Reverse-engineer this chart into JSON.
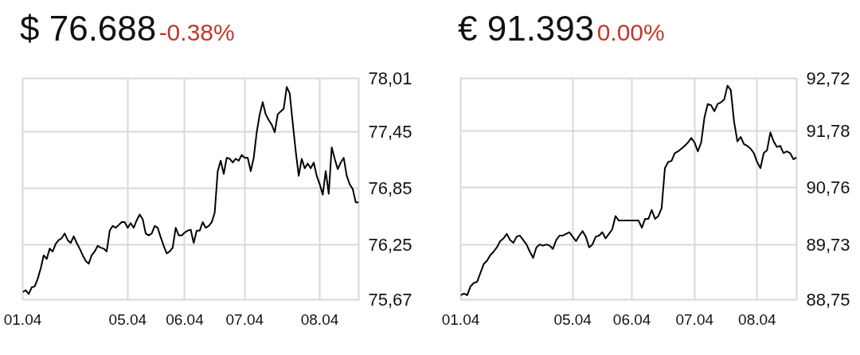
{
  "chart_data": [
    {
      "type": "line",
      "title": "$ 76.688",
      "subtitle": "-0.38%",
      "grid": true,
      "line_style": "solid",
      "categories": [
        "01.04",
        null,
        null,
        null,
        null,
        null,
        null,
        null,
        null,
        null,
        null,
        null,
        null,
        null,
        null,
        null,
        null,
        null,
        null,
        null,
        null,
        null,
        null,
        null,
        null,
        null,
        null,
        null,
        null,
        null,
        null,
        null,
        null,
        null,
        null,
        "05.04",
        null,
        null,
        null,
        null,
        null,
        null,
        null,
        null,
        null,
        null,
        null,
        null,
        null,
        null,
        null,
        null,
        null,
        null,
        "06.04",
        null,
        null,
        null,
        null,
        null,
        null,
        null,
        null,
        null,
        null,
        null,
        null,
        null,
        null,
        null,
        null,
        null,
        null,
        null,
        "07.04",
        null,
        null,
        null,
        null,
        null,
        null,
        null,
        null,
        null,
        null,
        null,
        null,
        null,
        null,
        null,
        null,
        null,
        null,
        null,
        null,
        null,
        null,
        null,
        null,
        "08.04",
        null,
        null,
        null,
        null,
        null,
        null,
        null,
        null,
        null,
        null,
        null,
        null,
        null
      ],
      "ylim": [
        75.67,
        78.01
      ],
      "yticks": [
        {
          "value": 75.67,
          "label": "75,67"
        },
        {
          "value": 76.25,
          "label": "76,25"
        },
        {
          "value": 76.85,
          "label": "76,85"
        },
        {
          "value": 77.45,
          "label": "77,45"
        },
        {
          "value": 78.01,
          "label": "78,01"
        }
      ],
      "series": [
        {
          "color": "#000000",
          "values": [
            75.75,
            75.77,
            75.73,
            75.8,
            75.81,
            75.89,
            76.0,
            76.14,
            76.1,
            76.21,
            76.18,
            76.26,
            76.3,
            76.32,
            76.37,
            76.3,
            76.27,
            76.34,
            76.27,
            76.21,
            76.14,
            76.08,
            76.05,
            76.14,
            76.18,
            76.24,
            76.22,
            76.21,
            76.18,
            76.4,
            76.45,
            76.43,
            76.46,
            76.49,
            76.49,
            76.43,
            76.48,
            76.43,
            76.51,
            76.57,
            76.52,
            76.37,
            76.35,
            76.37,
            76.45,
            76.43,
            76.33,
            76.24,
            76.16,
            76.18,
            76.22,
            76.43,
            76.35,
            76.35,
            76.38,
            76.4,
            76.41,
            76.27,
            76.4,
            76.4,
            76.49,
            76.43,
            76.45,
            76.49,
            76.59,
            77.03,
            77.14,
            77.0,
            77.17,
            77.16,
            77.12,
            77.16,
            77.14,
            77.2,
            77.17,
            77.17,
            77.03,
            77.17,
            77.44,
            77.63,
            77.76,
            77.63,
            77.57,
            77.52,
            77.44,
            77.63,
            77.66,
            77.69,
            77.92,
            77.85,
            77.54,
            77.24,
            76.98,
            77.16,
            77.06,
            77.11,
            77.06,
            77.12,
            76.98,
            76.89,
            76.78,
            77.03,
            76.79,
            77.28,
            77.16,
            77.05,
            77.12,
            77.17,
            76.98,
            76.89,
            76.84,
            76.7,
            76.7
          ]
        }
      ]
    },
    {
      "type": "line",
      "title": "€ 91.393",
      "subtitle": "0.00%",
      "grid": true,
      "line_style": "solid",
      "categories": [
        "01.04",
        null,
        null,
        null,
        null,
        null,
        null,
        null,
        null,
        null,
        null,
        null,
        null,
        null,
        null,
        null,
        null,
        null,
        null,
        null,
        null,
        null,
        null,
        null,
        null,
        null,
        null,
        null,
        null,
        null,
        null,
        null,
        null,
        null,
        "05.04",
        null,
        null,
        null,
        null,
        null,
        null,
        null,
        null,
        null,
        null,
        null,
        null,
        null,
        null,
        null,
        null,
        null,
        "06.04",
        null,
        null,
        null,
        null,
        null,
        null,
        null,
        null,
        null,
        null,
        null,
        null,
        null,
        null,
        null,
        null,
        null,
        null,
        "07.04",
        null,
        null,
        null,
        null,
        null,
        null,
        null,
        null,
        null,
        null,
        null,
        null,
        null,
        null,
        null,
        null,
        null,
        null,
        "08.04",
        null,
        null,
        null,
        null,
        null,
        null,
        null,
        null,
        null,
        null,
        null,
        null
      ],
      "ylim": [
        88.75,
        92.72
      ],
      "yticks": [
        {
          "value": 88.75,
          "label": "88,75"
        },
        {
          "value": 89.73,
          "label": "89,73"
        },
        {
          "value": 90.76,
          "label": "90,76"
        },
        {
          "value": 91.78,
          "label": "91,78"
        },
        {
          "value": 92.72,
          "label": "92,72"
        }
      ],
      "series": [
        {
          "color": "#000000",
          "values": [
            88.83,
            88.86,
            88.83,
            88.99,
            89.05,
            89.07,
            89.23,
            89.39,
            89.45,
            89.55,
            89.61,
            89.69,
            89.8,
            89.85,
            89.93,
            89.82,
            89.77,
            89.88,
            89.9,
            89.82,
            89.74,
            89.61,
            89.5,
            89.69,
            89.74,
            89.72,
            89.74,
            89.72,
            89.66,
            89.82,
            89.9,
            89.9,
            89.93,
            89.96,
            89.88,
            89.8,
            89.9,
            89.98,
            89.88,
            89.69,
            89.74,
            89.88,
            89.9,
            89.96,
            89.85,
            89.93,
            90.01,
            90.25,
            90.17,
            90.17,
            90.17,
            90.17,
            90.17,
            90.17,
            90.17,
            90.04,
            90.2,
            90.2,
            90.36,
            90.2,
            90.25,
            90.39,
            91.11,
            91.22,
            91.24,
            91.38,
            91.41,
            91.46,
            91.51,
            91.57,
            91.65,
            91.57,
            91.41,
            91.57,
            92.02,
            92.26,
            92.24,
            92.13,
            92.26,
            92.29,
            92.34,
            92.59,
            92.51,
            91.94,
            91.59,
            91.67,
            91.54,
            91.51,
            91.46,
            91.38,
            91.22,
            91.11,
            91.38,
            91.43,
            91.75,
            91.59,
            91.49,
            91.51,
            91.38,
            91.41,
            91.38,
            91.27,
            91.3
          ]
        }
      ]
    }
  ]
}
